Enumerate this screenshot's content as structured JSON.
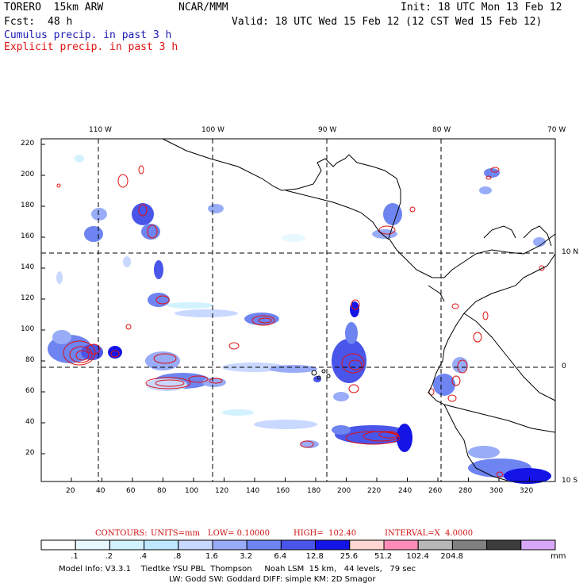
{
  "header": {
    "model": "TORERO  15km ARW",
    "org": "NCAR/MMM",
    "init": "Init: 18 UTC Mon 13 Feb 12",
    "fcst_label": "Fcst:",
    "fcst_value": "48 h",
    "valid": "Valid: 18 UTC Wed 15 Feb 12 (12 CST Wed 15 Feb 12)"
  },
  "legend": {
    "cumulus": "Cumulus precip. in past 3 h",
    "explicit": "Explicit precip. in past 3 h"
  },
  "map": {
    "lon_top": [
      "110 W",
      "100 W",
      "90 W",
      "80 W",
      "70 W"
    ],
    "lat_right": [
      "10 N",
      "0",
      "10 S"
    ],
    "y_grid": [
      "220",
      "200",
      "180",
      "160",
      "140",
      "120",
      "100",
      "80",
      "60",
      "40",
      "20"
    ],
    "x_grid": [
      "20",
      "40",
      "60",
      "80",
      "100",
      "120",
      "140",
      "160",
      "180",
      "200",
      "220",
      "240",
      "260",
      "280",
      "300",
      "320"
    ]
  },
  "contours_line": {
    "label": "CONTOURS:",
    "units": "UNITS=mm",
    "low": "LOW= 0.10000",
    "high": "HIGH=  102.40",
    "interval": "INTERVAL=X  4.0000"
  },
  "colorbar": {
    "colors": [
      "#ffffff",
      "#e8f8ff",
      "#d2f2ff",
      "#bde8ff",
      "#c8d8ff",
      "#98acf8",
      "#6e84f0",
      "#4a55ea",
      "#1414e6",
      "#ffd6d2",
      "#ff8cb8",
      "#b8b8b8",
      "#808080",
      "#3c3c3c",
      "#d8a8f8"
    ],
    "labels": [
      ".1",
      ".2",
      ".4",
      ".8",
      "1.6",
      "3.2",
      "6.4",
      "12.8",
      "25.6",
      "51.2",
      "102.4",
      "204.8"
    ],
    "unit": "mm"
  },
  "footer": {
    "line1": "Model Info: V3.3.1    Tiedtke YSU PBL  Thompson     Noah LSM  15 km,   44 levels,   79 sec",
    "line2": "LW: Godd SW: Goddard DIFF: simple KM: 2D Smagor"
  }
}
